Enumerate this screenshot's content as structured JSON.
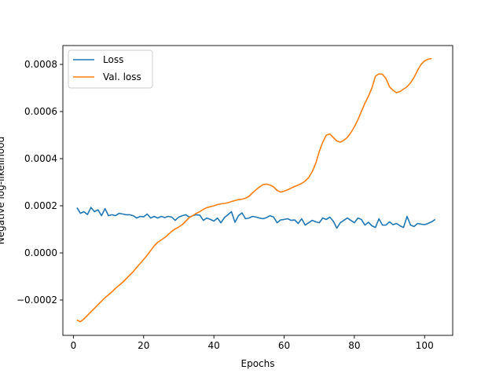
{
  "chart_data": {
    "type": "line",
    "title": "",
    "xlabel": "Epochs",
    "ylabel": "Negative log-likelihood",
    "xlim": [
      -3,
      108
    ],
    "ylim": [
      -0.00035,
      0.00088
    ],
    "xticks": [
      0,
      20,
      40,
      60,
      80,
      100
    ],
    "yticks": [
      -0.0002,
      0.0,
      0.0002,
      0.0004,
      0.0006,
      0.0008
    ],
    "ytick_labels": [
      "−0.0002",
      "0.0000",
      "0.0002",
      "0.0004",
      "0.0006",
      "0.0008"
    ],
    "grid": false,
    "legend_position": "top-left",
    "series": [
      {
        "name": "Loss",
        "color": "#1f77b4",
        "points": [
          [
            1,
            0.000192
          ],
          [
            2,
            0.000168
          ],
          [
            3,
            0.000175
          ],
          [
            4,
            0.000163
          ],
          [
            5,
            0.000193
          ],
          [
            6,
            0.000175
          ],
          [
            7,
            0.000183
          ],
          [
            8,
            0.000158
          ],
          [
            9,
            0.000188
          ],
          [
            10,
            0.000158
          ],
          [
            11,
            0.000162
          ],
          [
            12,
            0.000158
          ],
          [
            13,
            0.000168
          ],
          [
            14,
            0.000165
          ],
          [
            15,
            0.000162
          ],
          [
            16,
            0.000162
          ],
          [
            17,
            0.000158
          ],
          [
            18,
            0.000148
          ],
          [
            19,
            0.000155
          ],
          [
            20,
            0.000153
          ],
          [
            21,
            0.000165
          ],
          [
            22,
            0.000148
          ],
          [
            23,
            0.000155
          ],
          [
            24,
            0.000148
          ],
          [
            25,
            0.000155
          ],
          [
            26,
            0.00015
          ],
          [
            27,
            0.000155
          ],
          [
            28,
            0.000152
          ],
          [
            29,
            0.000138
          ],
          [
            30,
            0.000152
          ],
          [
            31,
            0.000158
          ],
          [
            32,
            0.000162
          ],
          [
            33,
            0.000152
          ],
          [
            34,
            0.000158
          ],
          [
            35,
            0.000162
          ],
          [
            36,
            0.00016
          ],
          [
            37,
            0.000138
          ],
          [
            38,
            0.000148
          ],
          [
            39,
            0.000142
          ],
          [
            40,
            0.000135
          ],
          [
            41,
            0.000148
          ],
          [
            42,
            0.000128
          ],
          [
            43,
            0.00015
          ],
          [
            44,
            0.000162
          ],
          [
            45,
            0.000175
          ],
          [
            46,
            0.00013
          ],
          [
            47,
            0.000158
          ],
          [
            48,
            0.00017
          ],
          [
            49,
            0.000145
          ],
          [
            50,
            0.000148
          ],
          [
            51,
            0.000155
          ],
          [
            52,
            0.000152
          ],
          [
            53,
            0.000148
          ],
          [
            54,
            0.000145
          ],
          [
            55,
            0.00015
          ],
          [
            56,
            0.000158
          ],
          [
            57,
            0.000152
          ],
          [
            58,
            0.000128
          ],
          [
            59,
            0.00014
          ],
          [
            60,
            0.000142
          ],
          [
            61,
            0.000145
          ],
          [
            62,
            0.000138
          ],
          [
            63,
            0.00014
          ],
          [
            64,
            0.000125
          ],
          [
            65,
            0.000145
          ],
          [
            66,
            0.000118
          ],
          [
            67,
            0.000128
          ],
          [
            68,
            0.000138
          ],
          [
            69,
            0.000132
          ],
          [
            70,
            0.000128
          ],
          [
            71,
            0.000148
          ],
          [
            72,
            0.000142
          ],
          [
            73,
            0.000152
          ],
          [
            74,
            0.000135
          ],
          [
            75,
            0.000105
          ],
          [
            76,
            0.000128
          ],
          [
            77,
            0.000138
          ],
          [
            78,
            0.000148
          ],
          [
            79,
            0.000138
          ],
          [
            80,
            0.000128
          ],
          [
            81,
            0.000148
          ],
          [
            82,
            0.000142
          ],
          [
            83,
            0.000118
          ],
          [
            84,
            0.00013
          ],
          [
            85,
            0.000115
          ],
          [
            86,
            0.000108
          ],
          [
            87,
            0.000145
          ],
          [
            88,
            0.000118
          ],
          [
            89,
            0.000118
          ],
          [
            90,
            0.000132
          ],
          [
            91,
            0.00012
          ],
          [
            92,
            0.000125
          ],
          [
            93,
            0.000115
          ],
          [
            94,
            0.000108
          ],
          [
            95,
            0.000155
          ],
          [
            96,
            0.000118
          ],
          [
            97,
            0.000112
          ],
          [
            98,
            0.000125
          ],
          [
            99,
            0.000122
          ],
          [
            100,
            0.00012
          ],
          [
            101,
            0.000125
          ],
          [
            102,
            0.000132
          ],
          [
            103,
            0.000142
          ]
        ]
      },
      {
        "name": "Val. loss",
        "color": "#ff7f0e",
        "points": [
          [
            1,
            -0.000285
          ],
          [
            2,
            -0.000292
          ],
          [
            3,
            -0.00028
          ],
          [
            4,
            -0.000265
          ],
          [
            5,
            -0.00025
          ],
          [
            6,
            -0.000235
          ],
          [
            7,
            -0.00022
          ],
          [
            8,
            -0.000205
          ],
          [
            9,
            -0.00019
          ],
          [
            10,
            -0.000178
          ],
          [
            11,
            -0.000165
          ],
          [
            12,
            -0.00015
          ],
          [
            13,
            -0.000138
          ],
          [
            14,
            -0.000125
          ],
          [
            15,
            -0.00011
          ],
          [
            16,
            -9.5e-05
          ],
          [
            17,
            -8e-05
          ],
          [
            18,
            -6.2e-05
          ],
          [
            19,
            -4.5e-05
          ],
          [
            20,
            -2.8e-05
          ],
          [
            21,
            -1e-05
          ],
          [
            22,
            1e-05
          ],
          [
            23,
            3e-05
          ],
          [
            24,
            4.5e-05
          ],
          [
            25,
            5.5e-05
          ],
          [
            26,
            6.5e-05
          ],
          [
            27,
            7.8e-05
          ],
          [
            28,
            9.2e-05
          ],
          [
            29,
            0.000102
          ],
          [
            30,
            0.00011
          ],
          [
            31,
            0.00012
          ],
          [
            32,
            0.000135
          ],
          [
            33,
            0.00015
          ],
          [
            34,
            0.000158
          ],
          [
            35,
            0.000168
          ],
          [
            36,
            0.000175
          ],
          [
            37,
            0.000185
          ],
          [
            38,
            0.000192
          ],
          [
            39,
            0.000196
          ],
          [
            40,
            0.0002
          ],
          [
            41,
            0.000205
          ],
          [
            42,
            0.000208
          ],
          [
            43,
            0.00021
          ],
          [
            44,
            0.000213
          ],
          [
            45,
            0.000218
          ],
          [
            46,
            0.000222
          ],
          [
            47,
            0.000226
          ],
          [
            48,
            0.000228
          ],
          [
            49,
            0.000232
          ],
          [
            50,
            0.00024
          ],
          [
            51,
            0.000255
          ],
          [
            52,
            0.000268
          ],
          [
            53,
            0.00028
          ],
          [
            54,
            0.00029
          ],
          [
            55,
            0.000292
          ],
          [
            56,
            0.000288
          ],
          [
            57,
            0.00028
          ],
          [
            58,
            0.000265
          ],
          [
            59,
            0.000258
          ],
          [
            60,
            0.000262
          ],
          [
            61,
            0.000268
          ],
          [
            62,
            0.000275
          ],
          [
            63,
            0.000282
          ],
          [
            64,
            0.000288
          ],
          [
            65,
            0.000295
          ],
          [
            66,
            0.000305
          ],
          [
            67,
            0.00032
          ],
          [
            68,
            0.000345
          ],
          [
            69,
            0.00038
          ],
          [
            70,
            0.00043
          ],
          [
            71,
            0.00047
          ],
          [
            72,
            0.0005
          ],
          [
            73,
            0.000505
          ],
          [
            74,
            0.00049
          ],
          [
            75,
            0.000475
          ],
          [
            76,
            0.00047
          ],
          [
            77,
            0.000478
          ],
          [
            78,
            0.00049
          ],
          [
            79,
            0.00051
          ],
          [
            80,
            0.000535
          ],
          [
            81,
            0.000565
          ],
          [
            82,
            0.0006
          ],
          [
            83,
            0.000635
          ],
          [
            84,
            0.000665
          ],
          [
            85,
            0.0007
          ],
          [
            86,
            0.00075
          ],
          [
            87,
            0.00076
          ],
          [
            88,
            0.000758
          ],
          [
            89,
            0.00074
          ],
          [
            90,
            0.000705
          ],
          [
            91,
            0.00069
          ],
          [
            92,
            0.00068
          ],
          [
            93,
            0.000685
          ],
          [
            94,
            0.000695
          ],
          [
            95,
            0.000705
          ],
          [
            96,
            0.000722
          ],
          [
            97,
            0.000745
          ],
          [
            98,
            0.000775
          ],
          [
            99,
            0.0008
          ],
          [
            100,
            0.000815
          ],
          [
            101,
            0.000822
          ],
          [
            102,
            0.000825
          ]
        ]
      }
    ]
  }
}
